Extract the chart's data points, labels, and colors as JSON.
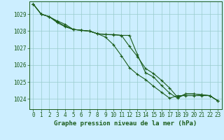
{
  "background_color": "#cceeff",
  "grid_color": "#99cccc",
  "line_color": "#1a5c1a",
  "xlabel": "Graphe pression niveau de la mer (hPa)",
  "xlabel_fontsize": 6.5,
  "tick_fontsize": 5.5,
  "ylim": [
    1023.4,
    1029.75
  ],
  "xlim": [
    -0.5,
    23.5
  ],
  "yticks": [
    1024,
    1025,
    1026,
    1027,
    1028,
    1029
  ],
  "xticks": [
    0,
    1,
    2,
    3,
    4,
    5,
    6,
    7,
    8,
    9,
    10,
    11,
    12,
    13,
    14,
    15,
    16,
    17,
    18,
    19,
    20,
    21,
    22,
    23
  ],
  "series1_x": [
    0,
    1,
    2,
    3,
    4,
    5,
    6,
    7,
    8,
    9,
    10,
    11,
    12,
    13,
    14,
    15,
    16,
    17,
    18,
    19,
    20,
    21,
    22,
    23
  ],
  "series1_y": [
    1029.6,
    1029.0,
    1028.85,
    1028.6,
    1028.4,
    1028.1,
    1028.05,
    1028.0,
    1027.85,
    1027.8,
    1027.8,
    1027.75,
    1027.1,
    1026.5,
    1025.8,
    1025.5,
    1025.1,
    1024.65,
    1024.1,
    1024.3,
    1024.3,
    1024.25,
    1024.2,
    1023.9
  ],
  "series2_x": [
    0,
    1,
    2,
    3,
    4,
    5,
    6,
    7,
    8,
    9,
    10,
    11,
    12,
    13,
    14,
    15,
    16,
    17,
    18,
    19,
    20,
    21,
    22,
    23
  ],
  "series2_y": [
    1029.6,
    1029.0,
    1028.85,
    1028.5,
    1028.25,
    1028.1,
    1028.05,
    1028.0,
    1027.85,
    1027.65,
    1027.2,
    1026.55,
    1025.85,
    1025.45,
    1025.15,
    1024.75,
    1024.4,
    1024.05,
    1024.2,
    1024.2,
    1024.2,
    1024.2,
    1024.2,
    1023.9
  ],
  "series3_x": [
    0,
    1,
    2,
    3,
    4,
    5,
    6,
    7,
    8,
    9,
    10,
    11,
    12,
    13,
    14,
    15,
    16,
    17,
    18,
    19,
    20,
    21,
    22,
    23
  ],
  "series3_y": [
    1029.6,
    1029.0,
    1028.85,
    1028.55,
    1028.3,
    1028.1,
    1028.05,
    1028.0,
    1027.85,
    1027.8,
    1027.78,
    1027.75,
    1027.75,
    1026.6,
    1025.55,
    1025.3,
    1024.8,
    1024.35,
    1024.05,
    1024.3,
    1024.3,
    1024.25,
    1024.2,
    1023.9
  ]
}
